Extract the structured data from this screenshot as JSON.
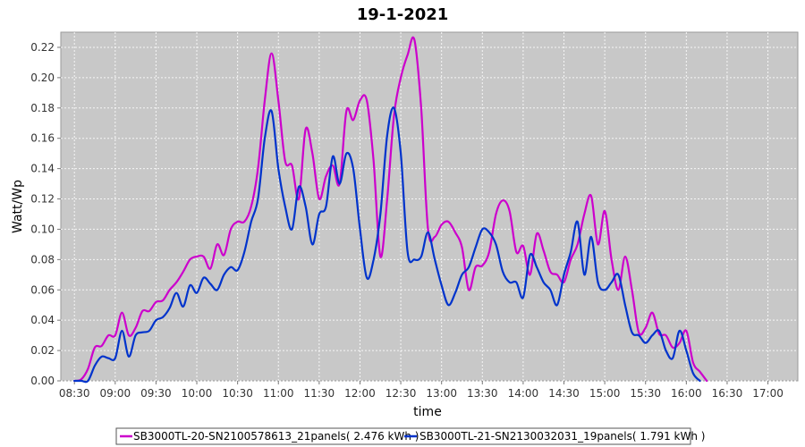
{
  "chart_data": {
    "type": "line",
    "title": "19-1-2021",
    "xlabel": "time",
    "ylabel": "Watt/Wp",
    "xlim": [
      "08:20",
      "17:22"
    ],
    "ylim": [
      0,
      0.23
    ],
    "grid": true,
    "legend_placement": "bottom",
    "x_ticks": [
      "08:30",
      "09:00",
      "09:30",
      "10:00",
      "10:30",
      "11:00",
      "11:30",
      "12:00",
      "12:30",
      "13:00",
      "13:30",
      "14:00",
      "14:30",
      "15:00",
      "15:30",
      "16:00",
      "16:30",
      "17:00"
    ],
    "y_ticks": [
      "0.00",
      "0.02",
      "0.04",
      "0.06",
      "0.08",
      "0.10",
      "0.12",
      "0.14",
      "0.16",
      "0.18",
      "0.20",
      "0.22"
    ],
    "series": [
      {
        "name": "SB3000TL-20-SN2100578613_21panels( 2.476 kWh )",
        "color": "#cc00cc",
        "points": [
          [
            "08:30",
            0.0
          ],
          [
            "08:35",
            0.001
          ],
          [
            "08:40",
            0.008
          ],
          [
            "08:45",
            0.022
          ],
          [
            "08:50",
            0.023
          ],
          [
            "08:55",
            0.03
          ],
          [
            "09:00",
            0.03
          ],
          [
            "09:05",
            0.045
          ],
          [
            "09:10",
            0.03
          ],
          [
            "09:15",
            0.035
          ],
          [
            "09:20",
            0.046
          ],
          [
            "09:25",
            0.046
          ],
          [
            "09:30",
            0.052
          ],
          [
            "09:35",
            0.053
          ],
          [
            "09:40",
            0.06
          ],
          [
            "09:45",
            0.065
          ],
          [
            "09:50",
            0.072
          ],
          [
            "09:55",
            0.08
          ],
          [
            "10:00",
            0.082
          ],
          [
            "10:05",
            0.082
          ],
          [
            "10:10",
            0.074
          ],
          [
            "10:15",
            0.09
          ],
          [
            "10:20",
            0.083
          ],
          [
            "10:25",
            0.1
          ],
          [
            "10:30",
            0.105
          ],
          [
            "10:35",
            0.105
          ],
          [
            "10:40",
            0.115
          ],
          [
            "10:45",
            0.14
          ],
          [
            "10:50",
            0.185
          ],
          [
            "10:55",
            0.216
          ],
          [
            "11:00",
            0.185
          ],
          [
            "11:05",
            0.145
          ],
          [
            "11:10",
            0.142
          ],
          [
            "11:15",
            0.12
          ],
          [
            "11:20",
            0.166
          ],
          [
            "11:25",
            0.15
          ],
          [
            "11:30",
            0.12
          ],
          [
            "11:35",
            0.135
          ],
          [
            "11:40",
            0.142
          ],
          [
            "11:45",
            0.13
          ],
          [
            "11:50",
            0.178
          ],
          [
            "11:55",
            0.172
          ],
          [
            "12:00",
            0.185
          ],
          [
            "12:05",
            0.185
          ],
          [
            "12:10",
            0.145
          ],
          [
            "12:15",
            0.082
          ],
          [
            "12:20",
            0.12
          ],
          [
            "12:25",
            0.175
          ],
          [
            "12:30",
            0.2
          ],
          [
            "12:35",
            0.215
          ],
          [
            "12:40",
            0.225
          ],
          [
            "12:45",
            0.18
          ],
          [
            "12:50",
            0.1
          ],
          [
            "12:55",
            0.095
          ],
          [
            "13:00",
            0.103
          ],
          [
            "13:05",
            0.105
          ],
          [
            "13:10",
            0.098
          ],
          [
            "13:15",
            0.088
          ],
          [
            "13:20",
            0.06
          ],
          [
            "13:25",
            0.075
          ],
          [
            "13:30",
            0.076
          ],
          [
            "13:35",
            0.085
          ],
          [
            "13:40",
            0.11
          ],
          [
            "13:45",
            0.119
          ],
          [
            "13:50",
            0.112
          ],
          [
            "13:55",
            0.085
          ],
          [
            "14:00",
            0.089
          ],
          [
            "14:05",
            0.07
          ],
          [
            "14:10",
            0.097
          ],
          [
            "14:15",
            0.086
          ],
          [
            "14:20",
            0.072
          ],
          [
            "14:25",
            0.07
          ],
          [
            "14:30",
            0.065
          ],
          [
            "14:35",
            0.08
          ],
          [
            "14:40",
            0.09
          ],
          [
            "14:45",
            0.11
          ],
          [
            "14:50",
            0.122
          ],
          [
            "14:55",
            0.09
          ],
          [
            "15:00",
            0.112
          ],
          [
            "15:05",
            0.08
          ],
          [
            "15:10",
            0.06
          ],
          [
            "15:15",
            0.082
          ],
          [
            "15:20",
            0.06
          ],
          [
            "15:25",
            0.032
          ],
          [
            "15:30",
            0.035
          ],
          [
            "15:35",
            0.045
          ],
          [
            "15:40",
            0.031
          ],
          [
            "15:45",
            0.03
          ],
          [
            "15:50",
            0.022
          ],
          [
            "15:55",
            0.025
          ],
          [
            "16:00",
            0.033
          ],
          [
            "16:05",
            0.012
          ],
          [
            "16:10",
            0.006
          ],
          [
            "16:15",
            0.0
          ]
        ]
      },
      {
        "name": "SB3000TL-21-SN2130032031_19panels( 1.791 kWh )",
        "color": "#0033cc",
        "points": [
          [
            "08:30",
            0.0
          ],
          [
            "08:35",
            0.0
          ],
          [
            "08:40",
            0.0
          ],
          [
            "08:45",
            0.01
          ],
          [
            "08:50",
            0.016
          ],
          [
            "08:55",
            0.015
          ],
          [
            "09:00",
            0.015
          ],
          [
            "09:05",
            0.033
          ],
          [
            "09:10",
            0.016
          ],
          [
            "09:15",
            0.03
          ],
          [
            "09:20",
            0.032
          ],
          [
            "09:25",
            0.033
          ],
          [
            "09:30",
            0.04
          ],
          [
            "09:35",
            0.042
          ],
          [
            "09:40",
            0.048
          ],
          [
            "09:45",
            0.058
          ],
          [
            "09:50",
            0.049
          ],
          [
            "09:55",
            0.063
          ],
          [
            "10:00",
            0.058
          ],
          [
            "10:05",
            0.068
          ],
          [
            "10:10",
            0.064
          ],
          [
            "10:15",
            0.06
          ],
          [
            "10:20",
            0.07
          ],
          [
            "10:25",
            0.075
          ],
          [
            "10:30",
            0.073
          ],
          [
            "10:35",
            0.085
          ],
          [
            "10:40",
            0.105
          ],
          [
            "10:45",
            0.12
          ],
          [
            "10:50",
            0.16
          ],
          [
            "10:55",
            0.178
          ],
          [
            "11:00",
            0.14
          ],
          [
            "11:05",
            0.115
          ],
          [
            "11:10",
            0.1
          ],
          [
            "11:15",
            0.128
          ],
          [
            "11:20",
            0.115
          ],
          [
            "11:25",
            0.09
          ],
          [
            "11:30",
            0.11
          ],
          [
            "11:35",
            0.115
          ],
          [
            "11:40",
            0.148
          ],
          [
            "11:45",
            0.13
          ],
          [
            "11:50",
            0.15
          ],
          [
            "11:55",
            0.14
          ],
          [
            "12:00",
            0.1
          ],
          [
            "12:05",
            0.068
          ],
          [
            "12:10",
            0.08
          ],
          [
            "12:15",
            0.11
          ],
          [
            "12:20",
            0.162
          ],
          [
            "12:25",
            0.18
          ],
          [
            "12:30",
            0.15
          ],
          [
            "12:35",
            0.085
          ],
          [
            "12:40",
            0.08
          ],
          [
            "12:45",
            0.082
          ],
          [
            "12:50",
            0.098
          ],
          [
            "12:55",
            0.08
          ],
          [
            "13:00",
            0.063
          ],
          [
            "13:05",
            0.05
          ],
          [
            "13:10",
            0.058
          ],
          [
            "13:15",
            0.07
          ],
          [
            "13:20",
            0.075
          ],
          [
            "13:25",
            0.088
          ],
          [
            "13:30",
            0.1
          ],
          [
            "13:35",
            0.098
          ],
          [
            "13:40",
            0.09
          ],
          [
            "13:45",
            0.072
          ],
          [
            "13:50",
            0.065
          ],
          [
            "13:55",
            0.065
          ],
          [
            "14:00",
            0.055
          ],
          [
            "14:05",
            0.083
          ],
          [
            "14:10",
            0.075
          ],
          [
            "14:15",
            0.065
          ],
          [
            "14:20",
            0.06
          ],
          [
            "14:25",
            0.05
          ],
          [
            "14:30",
            0.07
          ],
          [
            "14:35",
            0.085
          ],
          [
            "14:40",
            0.105
          ],
          [
            "14:45",
            0.07
          ],
          [
            "14:50",
            0.095
          ],
          [
            "14:55",
            0.065
          ],
          [
            "15:00",
            0.06
          ],
          [
            "15:05",
            0.065
          ],
          [
            "15:10",
            0.07
          ],
          [
            "15:15",
            0.05
          ],
          [
            "15:20",
            0.032
          ],
          [
            "15:25",
            0.03
          ],
          [
            "15:30",
            0.025
          ],
          [
            "15:35",
            0.03
          ],
          [
            "15:40",
            0.033
          ],
          [
            "15:45",
            0.02
          ],
          [
            "15:50",
            0.015
          ],
          [
            "15:55",
            0.033
          ],
          [
            "16:00",
            0.02
          ],
          [
            "16:05",
            0.005
          ],
          [
            "16:10",
            0.0
          ]
        ]
      }
    ]
  }
}
